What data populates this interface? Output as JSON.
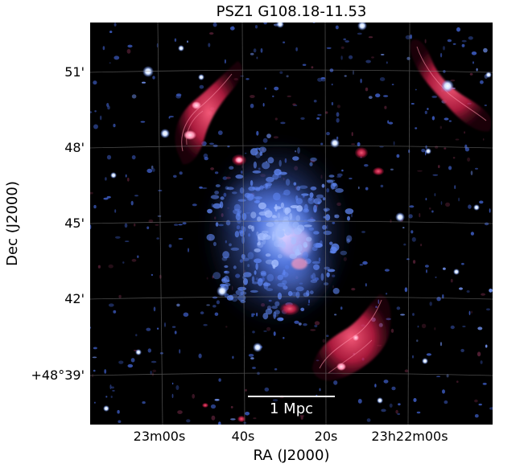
{
  "figure": {
    "title": "PSZ1 G108.18-11.53",
    "xlabel": "RA (J2000)",
    "ylabel": "Dec (J2000)",
    "x_ticks": [
      "23m00s",
      "40s",
      "20s",
      "23h22m00s"
    ],
    "y_ticks": [
      "51'",
      "48'",
      "45'",
      "42'",
      "+48°39'"
    ],
    "scale_bar_label": "1 Mpc",
    "colors": {
      "background": "#000000",
      "xray_emission": "#5a8fff",
      "radio_relic": "#d8234f",
      "grid": "#7a7a7a",
      "scale_bar": "#ffffff"
    }
  }
}
